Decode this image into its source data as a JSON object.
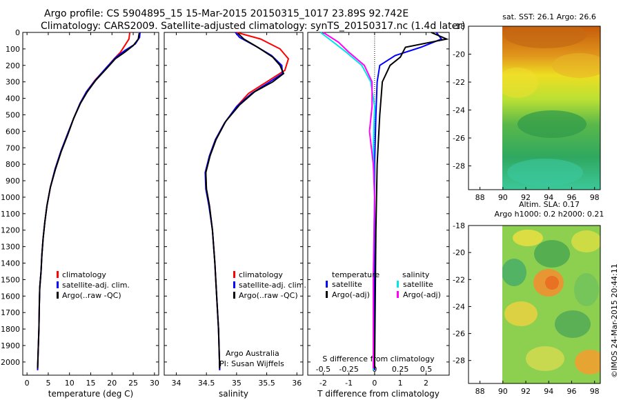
{
  "header": {
    "line1": "Argo profile: CS 5904895_15 15-Mar-2015 20150315_1017 23.89S 92.742E",
    "line2": "Climatology: CARS2009. Satellite-adjusted climatology: synTS_20150317.nc (1.4d later)"
  },
  "colors": {
    "climatology": "#ff0000",
    "satellite": "#0000ff",
    "argo": "#000000",
    "sat_salinity": "#00e5e5",
    "argo_salinity": "#ff00ff"
  },
  "chart_data": [
    {
      "type": "line",
      "id": "temperature",
      "xlabel": "temperature (deg C)",
      "ylabel": "",
      "xlim": [
        -1,
        31
      ],
      "ylim": [
        2080,
        0
      ],
      "xticks": [
        0,
        5,
        10,
        15,
        20,
        25,
        30
      ],
      "yticks": [
        0,
        100,
        200,
        300,
        400,
        500,
        600,
        700,
        800,
        900,
        1000,
        1100,
        1200,
        1300,
        1400,
        1500,
        1600,
        1700,
        1800,
        1900,
        2000
      ],
      "legend": [
        "climatology",
        "satellite-adj. clim.",
        "Argo(..raw -QC)"
      ],
      "series": [
        {
          "name": "climatology",
          "color": "#ff0000",
          "points": [
            [
              24.2,
              0
            ],
            [
              24.0,
              40
            ],
            [
              23.0,
              80
            ],
            [
              22.0,
              120
            ],
            [
              20.5,
              160
            ],
            [
              18.5,
              220
            ],
            [
              16.0,
              290
            ],
            [
              14.0,
              360
            ],
            [
              12.5,
              430
            ],
            [
              11.0,
              520
            ],
            [
              9.5,
              620
            ],
            [
              8.0,
              720
            ],
            [
              6.6,
              830
            ],
            [
              5.5,
              940
            ],
            [
              4.7,
              1050
            ],
            [
              4.2,
              1150
            ],
            [
              3.8,
              1250
            ],
            [
              3.5,
              1350
            ],
            [
              3.3,
              1450
            ],
            [
              3.0,
              1550
            ],
            [
              2.9,
              1650
            ],
            [
              2.8,
              1800
            ],
            [
              2.6,
              1950
            ],
            [
              2.5,
              2050
            ]
          ]
        },
        {
          "name": "satellite-adj. clim.",
          "color": "#0000ff",
          "points": [
            [
              26.6,
              0
            ],
            [
              26.5,
              30
            ],
            [
              25.5,
              70
            ],
            [
              23.0,
              110
            ],
            [
              21.0,
              150
            ],
            [
              18.8,
              210
            ],
            [
              16.1,
              290
            ],
            [
              14.0,
              360
            ],
            [
              12.5,
              430
            ],
            [
              11.0,
              520
            ],
            [
              9.5,
              620
            ],
            [
              8.0,
              720
            ],
            [
              6.6,
              830
            ],
            [
              5.5,
              940
            ],
            [
              4.7,
              1050
            ],
            [
              4.2,
              1150
            ],
            [
              3.8,
              1250
            ],
            [
              3.5,
              1350
            ],
            [
              3.3,
              1450
            ],
            [
              3.0,
              1550
            ],
            [
              2.9,
              1650
            ],
            [
              2.8,
              1800
            ],
            [
              2.6,
              1950
            ],
            [
              2.5,
              2050
            ]
          ]
        },
        {
          "name": "Argo(..raw -QC)",
          "color": "#000000",
          "points": [
            [
              26.4,
              5
            ],
            [
              26.2,
              40
            ],
            [
              25.0,
              80
            ],
            [
              23.0,
              120
            ],
            [
              20.8,
              160
            ],
            [
              18.7,
              220
            ],
            [
              16.2,
              290
            ],
            [
              14.2,
              360
            ],
            [
              12.6,
              430
            ],
            [
              11.0,
              520
            ],
            [
              9.6,
              620
            ],
            [
              8.1,
              720
            ],
            [
              6.7,
              830
            ],
            [
              5.5,
              940
            ],
            [
              4.7,
              1050
            ],
            [
              4.2,
              1150
            ],
            [
              3.8,
              1250
            ],
            [
              3.5,
              1350
            ],
            [
              3.3,
              1450
            ],
            [
              3.0,
              1550
            ],
            [
              2.9,
              1650
            ],
            [
              2.8,
              1800
            ],
            [
              2.6,
              1950
            ],
            [
              2.5,
              2040
            ]
          ]
        }
      ]
    },
    {
      "type": "line",
      "id": "salinity",
      "xlabel": "salinity",
      "ylabel": "",
      "xlim": [
        33.8,
        36.1
      ],
      "ylim": [
        2080,
        0
      ],
      "xticks": [
        34,
        34.5,
        35,
        35.5,
        36
      ],
      "legend": [
        "climatology",
        "satellite-adj. clim.",
        "Argo(..raw -QC)"
      ],
      "annotation": [
        "Argo Australia",
        "PI: Susan Wijffels"
      ],
      "series": [
        {
          "name": "climatology",
          "color": "#ff0000",
          "points": [
            [
              35.0,
              0
            ],
            [
              35.4,
              40
            ],
            [
              35.72,
              100
            ],
            [
              35.86,
              160
            ],
            [
              35.8,
              230
            ],
            [
              35.5,
              300
            ],
            [
              35.2,
              370
            ],
            [
              35.0,
              450
            ],
            [
              34.8,
              550
            ],
            [
              34.65,
              650
            ],
            [
              34.55,
              750
            ],
            [
              34.49,
              850
            ],
            [
              34.5,
              950
            ],
            [
              34.55,
              1050
            ],
            [
              34.6,
              1200
            ],
            [
              34.64,
              1400
            ],
            [
              34.67,
              1600
            ],
            [
              34.7,
              1800
            ],
            [
              34.72,
              2050
            ]
          ]
        },
        {
          "name": "satellite-adj. clim.",
          "color": "#0000ff",
          "points": [
            [
              34.98,
              0
            ],
            [
              35.05,
              30
            ],
            [
              35.3,
              80
            ],
            [
              35.58,
              140
            ],
            [
              35.75,
              200
            ],
            [
              35.76,
              250
            ],
            [
              35.55,
              300
            ],
            [
              35.25,
              370
            ],
            [
              35.0,
              450
            ],
            [
              34.8,
              550
            ],
            [
              34.65,
              650
            ],
            [
              34.55,
              750
            ],
            [
              34.48,
              850
            ],
            [
              34.49,
              950
            ],
            [
              34.54,
              1050
            ],
            [
              34.6,
              1200
            ],
            [
              34.64,
              1400
            ],
            [
              34.67,
              1600
            ],
            [
              34.7,
              1800
            ],
            [
              34.72,
              2050
            ]
          ]
        },
        {
          "name": "Argo(..raw -QC)",
          "color": "#000000",
          "points": [
            [
              35.02,
              5
            ],
            [
              35.12,
              40
            ],
            [
              35.35,
              90
            ],
            [
              35.6,
              150
            ],
            [
              35.72,
              200
            ],
            [
              35.78,
              250
            ],
            [
              35.6,
              300
            ],
            [
              35.3,
              360
            ],
            [
              35.05,
              440
            ],
            [
              34.82,
              540
            ],
            [
              34.66,
              650
            ],
            [
              34.56,
              750
            ],
            [
              34.49,
              850
            ],
            [
              34.5,
              950
            ],
            [
              34.55,
              1050
            ],
            [
              34.6,
              1200
            ],
            [
              34.64,
              1400
            ],
            [
              34.67,
              1600
            ],
            [
              34.7,
              1800
            ],
            [
              34.72,
              2040
            ]
          ]
        }
      ]
    },
    {
      "type": "line",
      "id": "differences",
      "xlabel": "T difference from climatology",
      "xlabel_top": "S difference from climatology",
      "xlim": [
        -2.6,
        2.9
      ],
      "ylim": [
        2080,
        0
      ],
      "xticks": [
        -2,
        -1,
        0,
        1,
        2
      ],
      "sticks": [
        -0.5,
        -0.25,
        0,
        0.25,
        0.5
      ],
      "legend_titles": [
        "temperature",
        "salinity"
      ],
      "legend": [
        "satellite",
        "Argo(-adj)",
        "satellite",
        "Argo(-adj)"
      ],
      "series": [
        {
          "name": "satellite",
          "group": "temperature",
          "color": "#0000ff",
          "points": [
            [
              2.4,
              0
            ],
            [
              2.6,
              40
            ],
            [
              1.8,
              90
            ],
            [
              0.8,
              140
            ],
            [
              0.2,
              200
            ],
            [
              0.1,
              300
            ],
            [
              0.05,
              500
            ],
            [
              0.0,
              800
            ],
            [
              0.0,
              1200
            ],
            [
              0.0,
              2050
            ]
          ]
        },
        {
          "name": "Argo(-adj)",
          "group": "temperature",
          "color": "#000000",
          "points": [
            [
              2.2,
              0
            ],
            [
              2.8,
              40
            ],
            [
              1.2,
              90
            ],
            [
              1.0,
              150
            ],
            [
              0.6,
              200
            ],
            [
              0.3,
              300
            ],
            [
              0.2,
              500
            ],
            [
              0.1,
              800
            ],
            [
              0.05,
              1200
            ],
            [
              0.0,
              2040
            ]
          ]
        },
        {
          "name": "satellite",
          "group": "salinity",
          "color": "#00e5e5",
          "points": [
            [
              -2.1,
              0
            ],
            [
              -1.6,
              60
            ],
            [
              -1.1,
              120
            ],
            [
              -0.5,
              200
            ],
            [
              -0.15,
              300
            ],
            [
              0.0,
              450
            ],
            [
              -0.05,
              700
            ],
            [
              0.0,
              1000
            ],
            [
              -0.05,
              1500
            ],
            [
              -0.05,
              2050
            ]
          ]
        },
        {
          "name": "Argo(-adj)",
          "group": "salinity",
          "color": "#ff00ff",
          "points": [
            [
              -2.0,
              0
            ],
            [
              -1.4,
              60
            ],
            [
              -1.0,
              120
            ],
            [
              -0.4,
              200
            ],
            [
              -0.1,
              300
            ],
            [
              -0.1,
              450
            ],
            [
              -0.2,
              600
            ],
            [
              -0.05,
              800
            ],
            [
              0.0,
              1000
            ],
            [
              -0.05,
              1500
            ],
            [
              -0.05,
              2040
            ]
          ]
        }
      ]
    },
    {
      "type": "heatmap",
      "id": "sst-map",
      "title": "sat. SST: 26.1 Argo: 26.6",
      "xlim": [
        87,
        98.5
      ],
      "ylim": [
        -29.7,
        -18
      ],
      "xticks": [
        88,
        90,
        92,
        94,
        96,
        98
      ],
      "yticks": [
        -18,
        -20,
        -22,
        -24,
        -26,
        -28
      ]
    },
    {
      "type": "heatmap",
      "id": "sla-map",
      "title": [
        "Altim. SLA: 0.17",
        "Argo h1000: 0.2 h2000: 0.21"
      ],
      "xlim": [
        87,
        98.5
      ],
      "ylim": [
        -29.7,
        -18
      ],
      "xticks": [
        88,
        90,
        92,
        94,
        96,
        98
      ],
      "yticks": [
        -18,
        -20,
        -22,
        -24,
        -26,
        -28
      ],
      "credit": "©IMOS 24-Mar-2015 20:44:11"
    }
  ]
}
